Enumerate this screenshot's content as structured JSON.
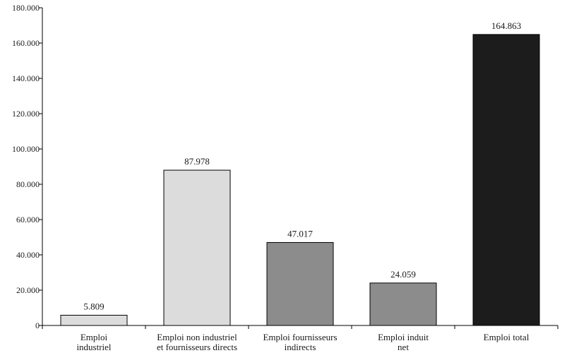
{
  "chart_data": {
    "type": "bar",
    "categories": [
      [
        "Emploi",
        "industriel"
      ],
      [
        "Emploi non industriel",
        "et fournisseurs directs"
      ],
      [
        "Emploi fournisseurs",
        "indirects"
      ],
      [
        "Emploi induit",
        "net"
      ],
      [
        "Emploi total"
      ]
    ],
    "values": [
      5809,
      87978,
      47017,
      24059,
      164863
    ],
    "data_labels": [
      "5.809",
      "87.978",
      "47.017",
      "24.059",
      "164.863"
    ],
    "bar_colors": [
      "#dcdcdc",
      "#dcdcdc",
      "#8c8c8c",
      "#8c8c8c",
      "#1c1c1c"
    ],
    "ylim": [
      0,
      180000
    ],
    "yticks": [
      0,
      20000,
      40000,
      60000,
      80000,
      100000,
      120000,
      140000,
      160000,
      180000
    ],
    "ytick_labels": [
      "0",
      "20.000",
      "40.000",
      "60.000",
      "80.000",
      "100.000",
      "120.000",
      "140.000",
      "160.000",
      "180.000"
    ],
    "grid": false,
    "legend": "none"
  }
}
